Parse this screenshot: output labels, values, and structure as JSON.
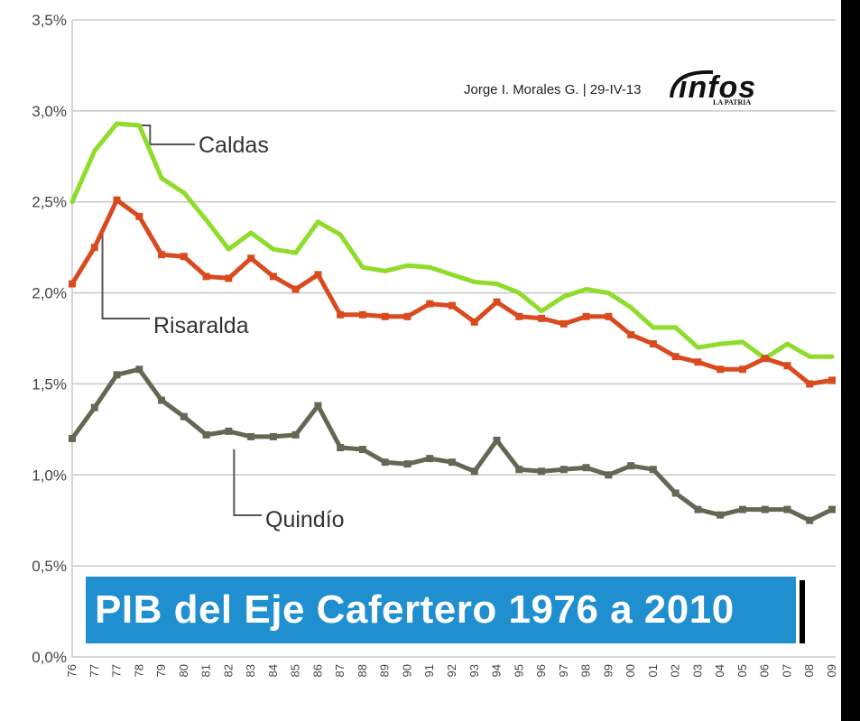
{
  "chart_data": {
    "type": "line",
    "title": "PIB del Eje Cafertero 1976 a 2010",
    "credit": "Jorge I. Morales G. | 29-IV-13",
    "logo": {
      "main": "infos",
      "sub": "LA PATRIA"
    },
    "x": [
      "76",
      "77",
      "77",
      "78",
      "79",
      "80",
      "81",
      "82",
      "83",
      "84",
      "85",
      "86",
      "87",
      "88",
      "89",
      "90",
      "91",
      "92",
      "93",
      "94",
      "95",
      "96",
      "97",
      "98",
      "99",
      "00",
      "01",
      "02",
      "03",
      "04",
      "05",
      "06",
      "07",
      "08",
      "09"
    ],
    "ylim": [
      0,
      3.5
    ],
    "yticks": [
      "0,0%",
      "0,5%",
      "1,0%",
      "1,5%",
      "2,0%",
      "2,5%",
      "3,0%",
      "3,5%"
    ],
    "series": [
      {
        "name": "Caldas",
        "color": "#8fdc2a",
        "values": [
          2.5,
          2.78,
          2.93,
          2.92,
          2.63,
          2.55,
          2.4,
          2.24,
          2.33,
          2.24,
          2.22,
          2.39,
          2.32,
          2.14,
          2.12,
          2.15,
          2.14,
          2.1,
          2.06,
          2.05,
          2.0,
          1.9,
          1.98,
          2.02,
          2.0,
          1.92,
          1.81,
          1.81,
          1.7,
          1.72,
          1.73,
          1.64,
          1.72,
          1.65,
          1.65
        ]
      },
      {
        "name": "Risaralda",
        "color": "#d94a1e",
        "values": [
          2.05,
          2.25,
          2.51,
          2.42,
          2.21,
          2.2,
          2.09,
          2.08,
          2.19,
          2.09,
          2.02,
          2.1,
          1.88,
          1.88,
          1.87,
          1.87,
          1.94,
          1.93,
          1.84,
          1.95,
          1.87,
          1.86,
          1.83,
          1.87,
          1.87,
          1.77,
          1.72,
          1.65,
          1.62,
          1.58,
          1.58,
          1.64,
          1.6,
          1.5,
          1.52
        ]
      },
      {
        "name": "Quindío",
        "color": "#666655",
        "values": [
          1.2,
          1.37,
          1.55,
          1.58,
          1.41,
          1.32,
          1.22,
          1.24,
          1.21,
          1.21,
          1.22,
          1.38,
          1.15,
          1.14,
          1.07,
          1.06,
          1.09,
          1.07,
          1.02,
          1.19,
          1.03,
          1.02,
          1.03,
          1.04,
          1.0,
          1.05,
          1.03,
          0.9,
          0.81,
          0.78,
          0.81,
          0.81,
          0.81,
          0.75,
          0.81
        ]
      }
    ]
  }
}
